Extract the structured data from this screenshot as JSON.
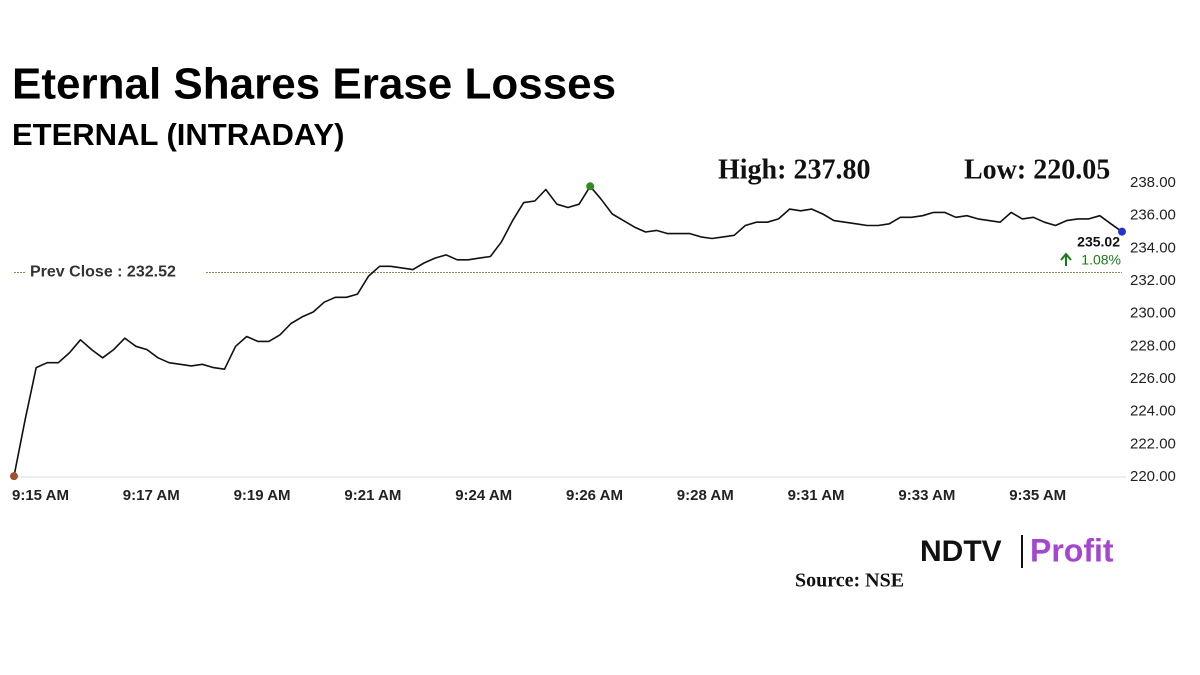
{
  "chart_data": {
    "type": "line",
    "title": "Eternal Shares Erase Losses",
    "subtitle": "ETERNAL (INTRADAY)",
    "high_label": "High: 237.80",
    "low_label": "Low: 220.05",
    "last_label": "235.02",
    "change_label": "1.08%",
    "annotations": [
      {
        "label": "Prev Close : 232.52",
        "value": 232.52
      }
    ],
    "source": "Source: NSE",
    "logo": [
      "NDTV",
      "Profit"
    ],
    "color": "#111111",
    "categories": [
      "9:15 AM",
      null,
      null,
      null,
      null,
      null,
      null,
      null,
      null,
      null,
      "9:17 AM",
      null,
      null,
      null,
      null,
      null,
      null,
      null,
      null,
      null,
      "9:19 AM",
      null,
      null,
      null,
      null,
      null,
      null,
      null,
      null,
      null,
      "9:21 AM",
      null,
      null,
      null,
      null,
      null,
      null,
      null,
      null,
      null,
      "9:24 AM",
      null,
      null,
      null,
      null,
      null,
      null,
      null,
      null,
      null,
      "9:26 AM",
      null,
      null,
      null,
      null,
      null,
      null,
      null,
      null,
      null,
      "9:28 AM",
      null,
      null,
      null,
      null,
      null,
      null,
      null,
      null,
      null,
      "9:31 AM",
      null,
      null,
      null,
      null,
      null,
      null,
      null,
      null,
      null,
      "9:33 AM",
      null,
      null,
      null,
      null,
      null,
      null,
      null,
      null,
      null,
      "9:35 AM",
      null,
      null,
      null,
      null,
      null,
      null,
      null,
      null,
      null,
      null
    ],
    "values": [
      220.05,
      223.5,
      226.7,
      227.0,
      227.0,
      227.6,
      228.4,
      227.8,
      227.3,
      227.8,
      228.5,
      228.0,
      227.8,
      227.3,
      227.0,
      226.9,
      226.8,
      226.9,
      226.7,
      226.6,
      228.0,
      228.6,
      228.3,
      228.3,
      228.7,
      229.4,
      229.8,
      230.1,
      230.7,
      231.0,
      231.0,
      231.2,
      232.3,
      232.9,
      232.9,
      232.8,
      232.7,
      233.1,
      233.4,
      233.6,
      233.3,
      233.3,
      233.4,
      233.5,
      234.4,
      235.7,
      236.8,
      236.9,
      237.6,
      236.7,
      236.5,
      236.7,
      237.8,
      237.0,
      236.1,
      235.7,
      235.3,
      235.0,
      235.1,
      234.9,
      234.9,
      234.9,
      234.7,
      234.6,
      234.7,
      234.8,
      235.4,
      235.6,
      235.6,
      235.8,
      236.4,
      236.3,
      236.4,
      236.1,
      235.7,
      235.6,
      235.5,
      235.4,
      235.4,
      235.5,
      235.9,
      235.9,
      236.0,
      236.2,
      236.2,
      235.9,
      236.0,
      235.8,
      235.7,
      235.6,
      236.2,
      235.8,
      235.9,
      235.6,
      235.4,
      235.7,
      235.8,
      235.8,
      236.0,
      235.5,
      235.02
    ],
    "ylim": [
      220,
      238
    ],
    "yticks": [
      {
        "value": 220,
        "label": "220.00"
      },
      {
        "value": 222,
        "label": "222.00"
      },
      {
        "value": 224,
        "label": "224.00"
      },
      {
        "value": 226,
        "label": "226.00"
      },
      {
        "value": 228,
        "label": "228.00"
      },
      {
        "value": 230,
        "label": "230.00"
      },
      {
        "value": 232,
        "label": "232.00"
      },
      {
        "value": 234,
        "label": "234.00"
      },
      {
        "value": 236,
        "label": "236.00"
      },
      {
        "value": 238,
        "label": "238.00"
      }
    ],
    "grid": false
  }
}
